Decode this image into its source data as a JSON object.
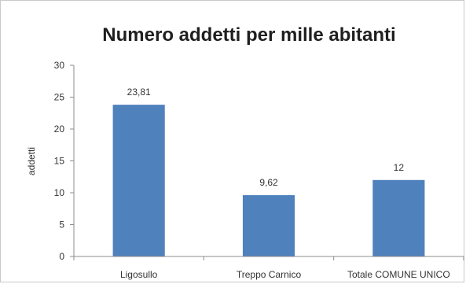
{
  "chart_data": {
    "type": "bar",
    "title": "Numero addetti per mille abitanti",
    "xlabel": "",
    "ylabel": "addetti",
    "categories": [
      "Ligosullo",
      "Treppo Carnico",
      "Totale COMUNE UNICO"
    ],
    "values": [
      23.81,
      9.62,
      12
    ],
    "data_labels": [
      "23,81",
      "9,62",
      "12"
    ],
    "ylim": [
      0,
      30
    ],
    "yticks": [
      0,
      5,
      10,
      15,
      20,
      25,
      30
    ],
    "grid": false,
    "legend": "none",
    "bar_color": "#4f81bd"
  }
}
